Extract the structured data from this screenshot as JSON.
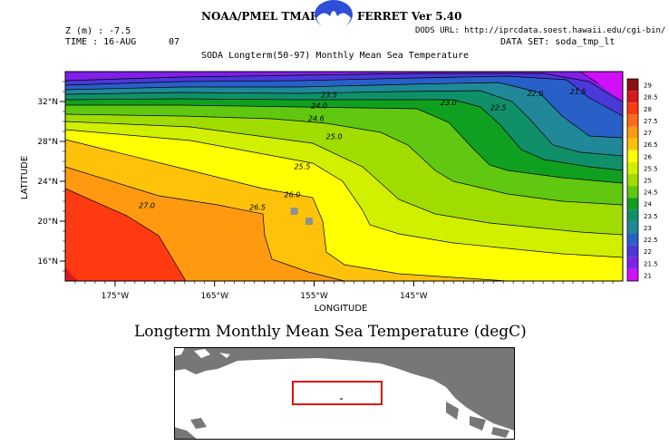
{
  "header": {
    "left_title": "NOAA/PMEL TMAP",
    "right_title": "FERRET Ver 5.40",
    "z_label": "Z (m) : -7.5",
    "time_label": "TIME : 16-AUG",
    "time_extra": "07",
    "dods_url": "DODS URL: http://iprcdata.soest.hawaii.edu/cgi-bin/",
    "dataset": "DATA SET: soda_tmp_lt"
  },
  "logo": {
    "name": "noaa-logo-icon",
    "colors": [
      "#2f4fd8",
      "#ffffff"
    ]
  },
  "chart_data": {
    "type": "heatmap",
    "title": "SODA Longterm(50-97) Monthly Mean Sea Temperature",
    "xlabel": "LONGITUDE",
    "ylabel": "LATITUDE",
    "xlim": [
      -180,
      -124
    ],
    "ylim": [
      14,
      35
    ],
    "x_ticks": [
      {
        "value": -175,
        "label": "175°W"
      },
      {
        "value": -165,
        "label": "165°W"
      },
      {
        "value": -155,
        "label": "155°W"
      },
      {
        "value": -145,
        "label": "145°W"
      }
    ],
    "y_ticks": [
      {
        "value": 16,
        "label": "16°N"
      },
      {
        "value": 20,
        "label": "20°N"
      },
      {
        "value": 24,
        "label": "24°N"
      },
      {
        "value": 28,
        "label": "28°N"
      },
      {
        "value": 32,
        "label": "32°N"
      }
    ],
    "contour_labels": [
      {
        "text": "21.5",
        "lon": -128.5,
        "lat": 33.0
      },
      {
        "text": "22.0",
        "lon": -132.8,
        "lat": 32.8
      },
      {
        "text": "22.5",
        "lon": -136.5,
        "lat": 31.4
      },
      {
        "text": "23.0",
        "lon": -141.5,
        "lat": 31.9
      },
      {
        "text": "23.5",
        "lon": -153.5,
        "lat": 32.7
      },
      {
        "text": "24.0",
        "lon": -154.5,
        "lat": 31.6
      },
      {
        "text": "24.6",
        "lon": -154.8,
        "lat": 30.3
      },
      {
        "text": "25.0",
        "lon": -153.0,
        "lat": 28.5
      },
      {
        "text": "25.5",
        "lon": -156.2,
        "lat": 25.5
      },
      {
        "text": "26.0",
        "lon": -157.2,
        "lat": 22.7
      },
      {
        "text": "26.5",
        "lon": -160.7,
        "lat": 21.4
      },
      {
        "text": "27.0",
        "lon": -171.8,
        "lat": 21.6
      }
    ],
    "colorbar": {
      "levels": [
        "29",
        "28.5",
        "28",
        "27.5",
        "27",
        "26.5",
        "26",
        "25.5",
        "25",
        "24.5",
        "24",
        "23.5",
        "23",
        "22.5",
        "22",
        "21.5",
        "21"
      ],
      "colors": [
        "#8b1010",
        "#d81a1a",
        "#ff3a10",
        "#ff6a1a",
        "#ff9a10",
        "#ffc20a",
        "#ffff00",
        "#d0f000",
        "#a0dc00",
        "#60c810",
        "#10a020",
        "#109068",
        "#208898",
        "#2860c8",
        "#4a38d8",
        "#8020e8",
        "#d010f8"
      ]
    },
    "land_cells": [
      {
        "lon": -155.5,
        "lat": 20.0
      },
      {
        "lon": -157.0,
        "lat": 21.0
      }
    ],
    "grid": false,
    "legend": "right"
  },
  "bottom": {
    "caption": "Longterm Monthly Mean Sea Temperature (degC)",
    "map_colors": {
      "land": "#777777",
      "ocean": "#ffffff",
      "region_box": "#e01010"
    }
  }
}
